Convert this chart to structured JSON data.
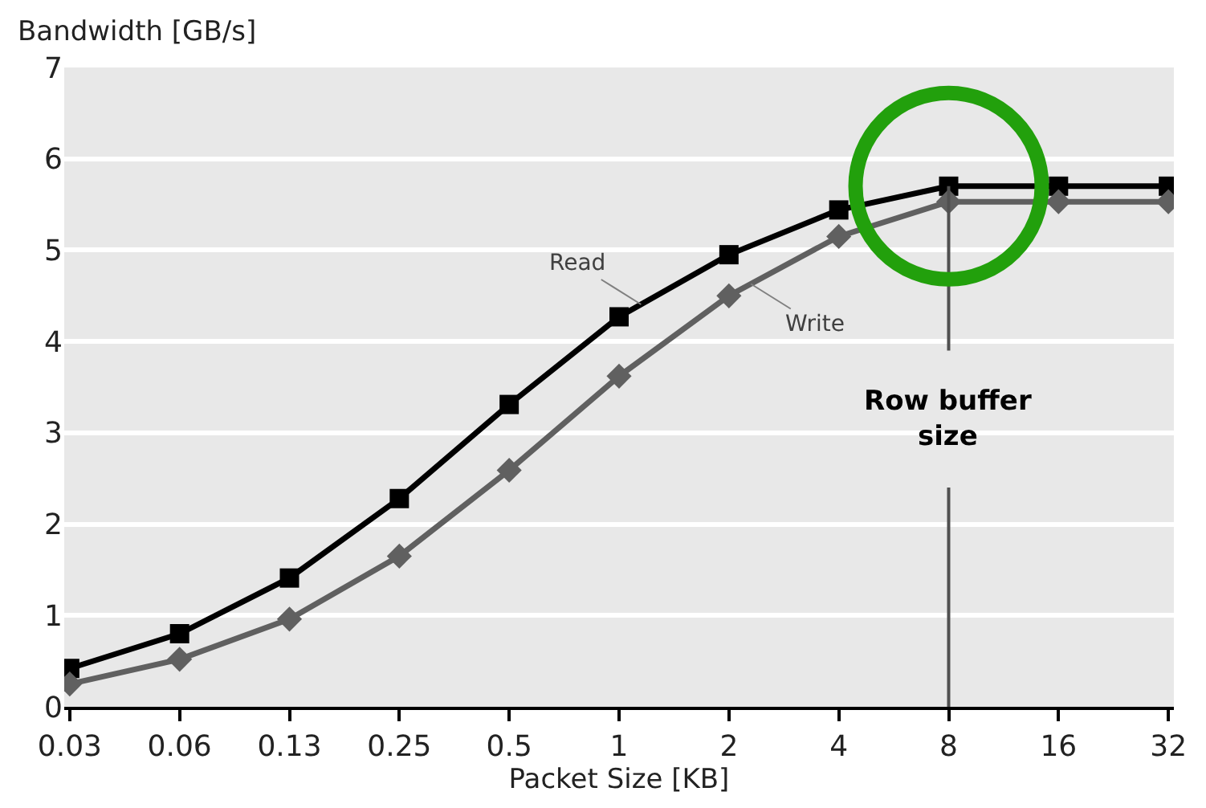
{
  "chart_data": {
    "type": "line",
    "xlabel": "Packet Size [KB]",
    "ylabel": "Bandwidth [GB/s]",
    "categories": [
      "0.03",
      "0.06",
      "0.13",
      "0.25",
      "0.5",
      "1",
      "2",
      "4",
      "8",
      "16",
      "32"
    ],
    "series": [
      {
        "name": "Read",
        "color": "#000000",
        "marker": "square",
        "values": [
          0.42,
          0.8,
          1.41,
          2.28,
          3.31,
          4.27,
          4.95,
          5.44,
          5.7,
          5.7,
          5.7
        ]
      },
      {
        "name": "Write",
        "color": "#606060",
        "marker": "diamond",
        "values": [
          0.25,
          0.52,
          0.96,
          1.65,
          2.59,
          3.62,
          4.5,
          5.15,
          5.53,
          5.53,
          5.53
        ]
      }
    ],
    "ylim": [
      0,
      7
    ],
    "yticks": [
      0,
      1,
      2,
      3,
      4,
      5,
      6,
      7
    ],
    "grid": "y",
    "legend": false,
    "line_style": "solid",
    "ref_lines": [
      {
        "axis": "x",
        "value": "8",
        "label": "Row buffer\nsize",
        "color": "#505050"
      }
    ]
  }
}
